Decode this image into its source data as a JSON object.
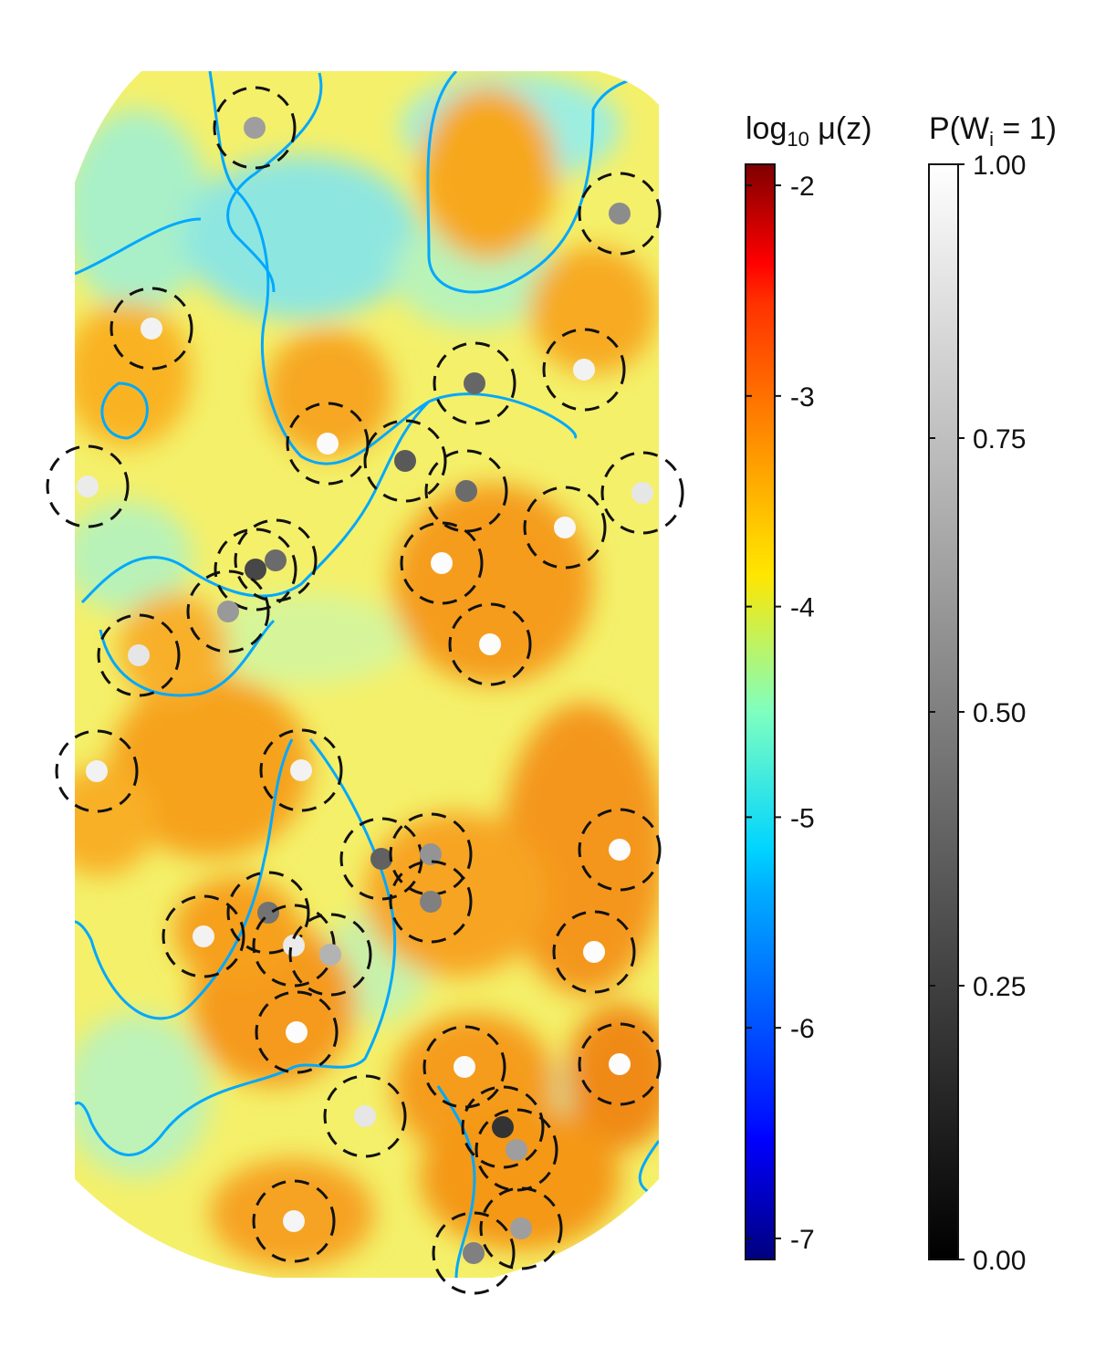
{
  "chart_data": {
    "type": "heatmap",
    "description_free": true,
    "field_colorbar": {
      "title_prefix": "log",
      "title_sub": "10",
      "title_suffix": " μ(z)",
      "range": [
        -7.1,
        -1.9
      ],
      "ticks": [
        -2,
        -3,
        -4,
        -5,
        -6,
        -7
      ],
      "tick_labels": [
        "-2",
        "-3",
        "-4",
        "-5",
        "-6",
        "-7"
      ],
      "colormap": "jet"
    },
    "prob_colorbar": {
      "title_prefix": "P(W",
      "title_sub": "i",
      "title_suffix": " = 1)",
      "range": [
        0,
        1
      ],
      "ticks": [
        1.0,
        0.75,
        0.5,
        0.25,
        0.0
      ],
      "tick_labels": [
        "1.00",
        "0.75",
        "0.50",
        "0.25",
        "0.00"
      ],
      "colormap": "gray"
    },
    "domain": {
      "x_range": [
        0,
        640
      ],
      "y_range": [
        0,
        1325
      ]
    },
    "points": [
      {
        "x": 197,
        "y": 62,
        "p": 0.62
      },
      {
        "x": 597,
        "y": 156,
        "p": 0.55
      },
      {
        "x": 84,
        "y": 282,
        "p": 0.95
      },
      {
        "x": 438,
        "y": 342,
        "p": 0.4
      },
      {
        "x": 558,
        "y": 327,
        "p": 0.95
      },
      {
        "x": 277,
        "y": 408,
        "p": 0.98
      },
      {
        "x": 362,
        "y": 427,
        "p": 0.35
      },
      {
        "x": 429,
        "y": 460,
        "p": 0.42
      },
      {
        "x": 14,
        "y": 455,
        "p": 0.92
      },
      {
        "x": 622,
        "y": 462,
        "p": 0.9
      },
      {
        "x": 537,
        "y": 500,
        "p": 0.97
      },
      {
        "x": 402,
        "y": 539,
        "p": 0.99
      },
      {
        "x": 220,
        "y": 536,
        "p": 0.42
      },
      {
        "x": 198,
        "y": 546,
        "p": 0.28
      },
      {
        "x": 168,
        "y": 592,
        "p": 0.6
      },
      {
        "x": 70,
        "y": 640,
        "p": 0.9
      },
      {
        "x": 455,
        "y": 628,
        "p": 0.99
      },
      {
        "x": 24,
        "y": 767,
        "p": 0.95
      },
      {
        "x": 248,
        "y": 766,
        "p": 0.95
      },
      {
        "x": 336,
        "y": 863,
        "p": 0.38
      },
      {
        "x": 390,
        "y": 858,
        "p": 0.58
      },
      {
        "x": 390,
        "y": 910,
        "p": 0.5
      },
      {
        "x": 597,
        "y": 853,
        "p": 0.99
      },
      {
        "x": 212,
        "y": 922,
        "p": 0.45
      },
      {
        "x": 141,
        "y": 948,
        "p": 0.95
      },
      {
        "x": 240,
        "y": 958,
        "p": 0.92
      },
      {
        "x": 280,
        "y": 968,
        "p": 0.7
      },
      {
        "x": 569,
        "y": 965,
        "p": 0.99
      },
      {
        "x": 243,
        "y": 1053,
        "p": 0.99
      },
      {
        "x": 427,
        "y": 1091,
        "p": 0.98
      },
      {
        "x": 597,
        "y": 1088,
        "p": 0.99
      },
      {
        "x": 318,
        "y": 1145,
        "p": 0.9
      },
      {
        "x": 469,
        "y": 1157,
        "p": 0.2
      },
      {
        "x": 484,
        "y": 1182,
        "p": 0.62
      },
      {
        "x": 240,
        "y": 1260,
        "p": 0.96
      },
      {
        "x": 489,
        "y": 1268,
        "p": 0.62
      },
      {
        "x": 437,
        "y": 1295,
        "p": 0.5
      }
    ]
  }
}
